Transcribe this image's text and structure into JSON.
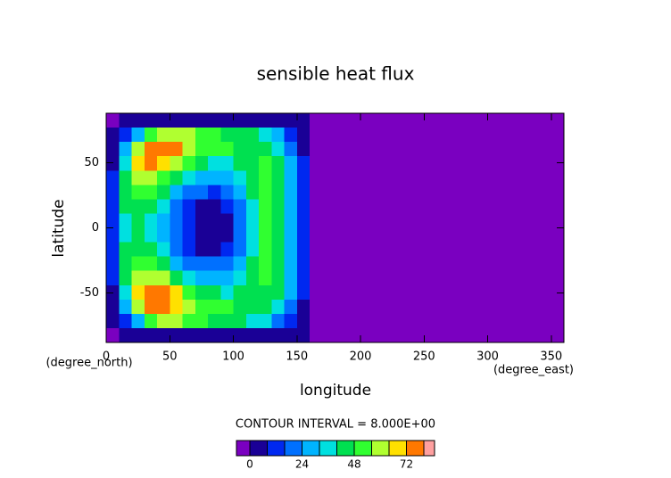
{
  "chart_data": {
    "type": "contour",
    "title": "sensible heat flux",
    "xlabel": "longitude",
    "ylabel": "latitude",
    "xunit": "(degree_east)",
    "yunit": "(degree_north)",
    "note": "CONTOUR INTERVAL = 8.000E+00",
    "xlim": [
      0,
      360
    ],
    "ylim": [
      -88,
      88
    ],
    "xticks": [
      0,
      50,
      100,
      150,
      200,
      250,
      300,
      350
    ],
    "yticks": [
      -50,
      0,
      50
    ],
    "xbins": [
      0,
      10,
      20,
      30,
      40,
      50,
      60,
      70,
      80,
      90,
      100,
      110,
      120,
      130,
      140,
      150,
      160,
      170,
      180
    ],
    "ybins": [
      88,
      77,
      66,
      55,
      44,
      33,
      22,
      11,
      0,
      -11,
      -22,
      -33,
      -44,
      -55,
      -66,
      -77,
      -88
    ],
    "z": [
      [
        -4,
        2,
        4,
        4,
        4,
        4,
        4,
        4,
        4,
        4,
        4,
        4,
        4,
        4,
        4,
        2,
        -4,
        -4
      ],
      [
        2,
        12,
        30,
        50,
        60,
        60,
        56,
        50,
        48,
        46,
        44,
        42,
        36,
        24,
        12,
        4,
        -4,
        -4
      ],
      [
        4,
        28,
        60,
        74,
        78,
        72,
        62,
        54,
        50,
        48,
        46,
        46,
        44,
        36,
        20,
        6,
        -4,
        -4
      ],
      [
        6,
        36,
        64,
        72,
        70,
        62,
        50,
        40,
        36,
        36,
        40,
        46,
        52,
        40,
        24,
        8,
        -4,
        -4
      ],
      [
        8,
        40,
        58,
        60,
        54,
        44,
        34,
        28,
        26,
        28,
        34,
        44,
        54,
        44,
        26,
        8,
        -4,
        -4
      ],
      [
        10,
        42,
        50,
        48,
        40,
        30,
        22,
        16,
        14,
        18,
        26,
        40,
        54,
        44,
        26,
        8,
        -4,
        -4
      ],
      [
        12,
        40,
        44,
        40,
        32,
        22,
        12,
        6,
        4,
        8,
        20,
        36,
        52,
        44,
        26,
        8,
        -4,
        -4
      ],
      [
        12,
        38,
        42,
        38,
        30,
        18,
        8,
        2,
        0,
        4,
        16,
        34,
        50,
        44,
        26,
        8,
        -4,
        -4
      ],
      [
        12,
        38,
        42,
        38,
        30,
        18,
        8,
        2,
        2,
        4,
        16,
        34,
        50,
        44,
        26,
        8,
        -4,
        -4
      ],
      [
        12,
        40,
        44,
        40,
        32,
        22,
        12,
        6,
        6,
        10,
        20,
        36,
        52,
        44,
        26,
        8,
        -4,
        -4
      ],
      [
        10,
        42,
        50,
        48,
        40,
        30,
        22,
        16,
        16,
        18,
        26,
        40,
        52,
        44,
        26,
        8,
        -4,
        -4
      ],
      [
        8,
        40,
        58,
        62,
        56,
        46,
        36,
        30,
        28,
        30,
        34,
        44,
        50,
        44,
        26,
        8,
        -4,
        -4
      ],
      [
        6,
        36,
        64,
        74,
        72,
        64,
        54,
        44,
        40,
        38,
        40,
        44,
        46,
        40,
        24,
        8,
        -4,
        -4
      ],
      [
        4,
        28,
        58,
        76,
        76,
        70,
        62,
        54,
        50,
        48,
        46,
        44,
        40,
        34,
        20,
        6,
        -4,
        -4
      ],
      [
        2,
        12,
        28,
        48,
        58,
        58,
        54,
        48,
        46,
        44,
        42,
        38,
        32,
        22,
        12,
        4,
        -4,
        -4
      ],
      [
        -4,
        2,
        4,
        4,
        4,
        4,
        4,
        4,
        4,
        4,
        4,
        4,
        4,
        4,
        4,
        2,
        -4,
        -4
      ]
    ],
    "levels": [
      0,
      8,
      16,
      24,
      32,
      40,
      48,
      56,
      64,
      72,
      80
    ],
    "colorbar_ticks": [
      0,
      24,
      48,
      72
    ],
    "colors": [
      "#7a00c0",
      "#1a0096",
      "#0028f0",
      "#0070ff",
      "#00b4ff",
      "#00e0e0",
      "#00e050",
      "#30ff30",
      "#b0ff30",
      "#ffe000",
      "#ff7800",
      "#ff2020",
      "#ffa0a0"
    ]
  }
}
